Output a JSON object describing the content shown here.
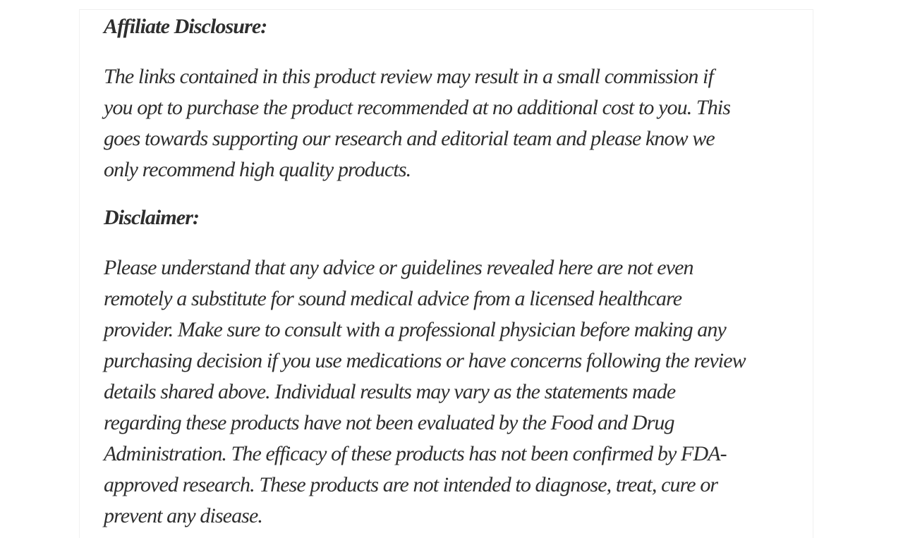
{
  "page": {
    "background_color": "#ffffff",
    "card_background_color": "#ffffff",
    "card_border_color": "#f0f0f0",
    "text_color": "#2e2e2e"
  },
  "content": {
    "affiliate": {
      "heading": "Affiliate Disclosure:",
      "lines": [
        "The links contained in this product review may result in a small commission if",
        "you opt to purchase the product recommended at no additional cost to you. This",
        "goes towards supporting our research and editorial team and please know we",
        "only recommend high quality products."
      ]
    },
    "disclaimer": {
      "heading": "Disclaimer:",
      "lines": [
        "Please understand that any advice or guidelines revealed here are not even",
        "remotely a substitute for sound medical advice from a licensed healthcare",
        "provider. Make sure to consult with a professional physician before making any",
        "purchasing decision if you use medications or have concerns following the review",
        "details shared above. Individual results may vary as the statements made",
        "regarding these products have not been evaluated by the Food and Drug",
        "Administration. The efficacy of these products has not been confirmed by FDA-",
        "approved research. These products are not intended to diagnose, treat, cure or",
        "prevent any disease."
      ]
    }
  }
}
